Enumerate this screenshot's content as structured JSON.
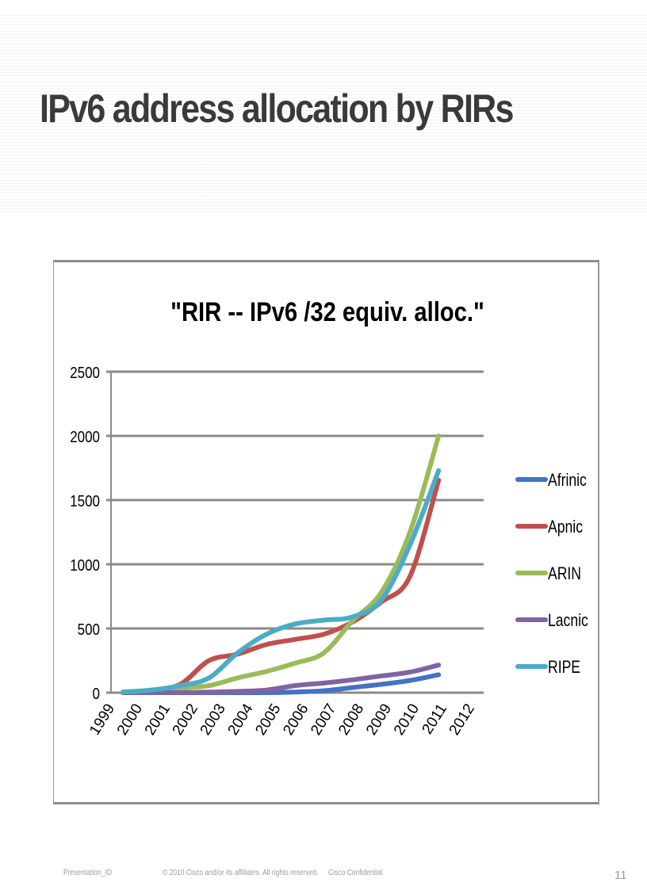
{
  "slide": {
    "title": "IPv6 address allocation by RIRs",
    "footer": {
      "presentation_id": "Presentation_ID",
      "copyright": "© 2010 Cisco and/or its affiliates. All rights reserved.",
      "confidential": "Cisco Confidential",
      "page_number": "11"
    }
  },
  "chart_data": {
    "type": "line",
    "title": "\"RIR -- IPv6 /32 equiv. alloc.\"",
    "xlabel": "",
    "ylabel": "",
    "ylim": [
      0,
      2500
    ],
    "yticks": [
      0,
      500,
      1000,
      1500,
      2000,
      2500
    ],
    "categories": [
      "1999",
      "2000",
      "2001",
      "2002",
      "2003",
      "2004",
      "2005",
      "2006",
      "2007",
      "2008",
      "2009",
      "2010",
      "2011",
      "2012"
    ],
    "x": [
      1999,
      2000,
      2001,
      2002,
      2003,
      2004,
      2005,
      2006,
      2007,
      2008,
      2009,
      2010
    ],
    "grid": true,
    "legend_position": "right",
    "series": [
      {
        "name": "Afrinic",
        "color": "#4472C4",
        "values": [
          0,
          0,
          0,
          0,
          0,
          0,
          5,
          15,
          40,
          65,
          95,
          140
        ]
      },
      {
        "name": "Apnic",
        "color": "#C0504D",
        "values": [
          5,
          20,
          65,
          250,
          300,
          375,
          415,
          455,
          550,
          705,
          905,
          1655
        ]
      },
      {
        "name": "ARIN",
        "color": "#9BBB59",
        "values": [
          5,
          15,
          35,
          55,
          115,
          165,
          230,
          310,
          560,
          780,
          1250,
          2000
        ]
      },
      {
        "name": "Lacnic",
        "color": "#8064A2",
        "values": [
          0,
          0,
          0,
          5,
          10,
          20,
          55,
          75,
          100,
          130,
          160,
          215
        ]
      },
      {
        "name": "RIPE",
        "color": "#4BACC6",
        "values": [
          5,
          20,
          55,
          115,
          310,
          455,
          535,
          565,
          590,
          720,
          1150,
          1730
        ]
      }
    ]
  }
}
